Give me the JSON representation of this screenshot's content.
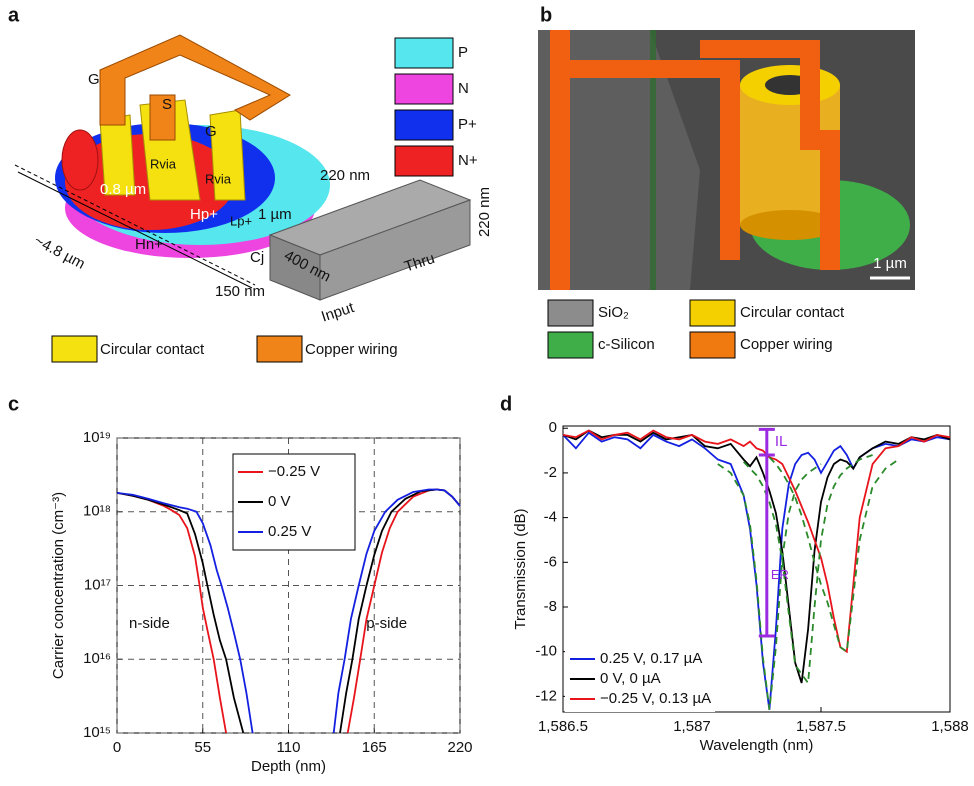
{
  "panels": {
    "a": {
      "label": "a",
      "legend": [
        {
          "name": "P",
          "color": "#55e6ee"
        },
        {
          "name": "N",
          "color": "#ee44e0"
        },
        {
          "name": "P+",
          "color": "#1030ee"
        },
        {
          "name": "N+",
          "color": "#ee2222"
        }
      ],
      "legend_bottom": [
        {
          "name": "Circular contact",
          "color": "#f5e010"
        },
        {
          "name": "Copper wiring",
          "color": "#f08418"
        }
      ],
      "texts": {
        "gate_left": "G",
        "source": "S",
        "gate_right": "G",
        "r_via_left": "Rvia",
        "r_via_right": "Rvia",
        "contact_height": "220 nm",
        "ring_width": "1 µm",
        "inner_width": "0.8 µm",
        "diameter": "~4.8 µm",
        "hp": "Hp+",
        "hn": "Hn+",
        "lp": "Lp+",
        "cj": "Cj",
        "wg_width": "400 nm",
        "gap": "150 nm",
        "wg_height": "220 nm",
        "input": "Input",
        "thru": "Thru"
      }
    },
    "b": {
      "label": "b",
      "scale_bar": "1 µm",
      "legend": [
        {
          "name": "SiO₂",
          "color": "#8c8c8c"
        },
        {
          "name": "c-Silicon",
          "color": "#3fae48"
        },
        {
          "name": "Circular contact",
          "color": "#f5d000"
        },
        {
          "name": "Copper wiring",
          "color": "#f07a10"
        }
      ]
    }
  },
  "chart_data": [
    {
      "type": "line",
      "panel_label": "c",
      "xlabel": "Depth (nm)",
      "ylabel": "Carrier concentration (cm⁻³)",
      "xlim": [
        0,
        220
      ],
      "xticks": [
        0,
        55,
        110,
        165,
        220
      ],
      "ylog": true,
      "ylim": [
        1000000000000000.0,
        1e+19
      ],
      "yticks": [
        {
          "value": 1000000000000000.0,
          "label": "10¹⁵"
        },
        {
          "value": 1e+16,
          "label": "10¹⁶"
        },
        {
          "value": 1e+17,
          "label": "10¹⁷"
        },
        {
          "value": 1e+18,
          "label": "10¹⁸"
        },
        {
          "value": 1e+19,
          "label": "10¹⁹"
        }
      ],
      "grid": true,
      "legend": "upper-center",
      "annotations": [
        "n-side",
        "p-side"
      ],
      "series": [
        {
          "name": "−0.25 V",
          "color": "#e8141c",
          "x": [
            0,
            10,
            20,
            30,
            35,
            40,
            45,
            50,
            53,
            55,
            58,
            62,
            66,
            70,
            null,
            148,
            152,
            156,
            160,
            165,
            170,
            175,
            180,
            190,
            200,
            205,
            210,
            215,
            220
          ],
          "values": [
            1.8e+18,
            1.65e+18,
            1.45e+18,
            1.2e+18,
            1.05e+18,
            9e+17,
            6e+17,
            2.5e+17,
            1e+17,
            5e+16,
            2.5e+16,
            1e+16,
            3000000000000000.0,
            1000000000000000.0,
            null,
            1000000000000000.0,
            3000000000000000.0,
            1e+16,
            3.5e+16,
            1e+17,
            2.8e+17,
            6e+17,
            1e+18,
            1.6e+18,
            1.95e+18,
            2e+18,
            1.95e+18,
            1.6e+18,
            1.2e+18
          ]
        },
        {
          "name": "0 V",
          "color": "#000000",
          "x": [
            0,
            10,
            20,
            30,
            35,
            40,
            45,
            50,
            55,
            58,
            62,
            66,
            70,
            75,
            81,
            null,
            143,
            147,
            151,
            155,
            160,
            165,
            170,
            176,
            185,
            195,
            205,
            210,
            215,
            220
          ],
          "values": [
            1.8e+18,
            1.65e+18,
            1.45e+18,
            1.25e+18,
            1.15e+18,
            1.05e+18,
            9.5e+17,
            5e+17,
            2e+17,
            1e+17,
            4e+16,
            1.8e+16,
            1e+16,
            3000000000000000.0,
            1000000000000000.0,
            null,
            1000000000000000.0,
            3500000000000000.0,
            1e+16,
            3.5e+16,
            1e+17,
            2.6e+17,
            5.5e+17,
            1e+18,
            1.5e+18,
            1.9e+18,
            2e+18,
            1.95e+18,
            1.6e+18,
            1.2e+18
          ]
        },
        {
          "name": "0.25 V",
          "color": "#1420e0",
          "x": [
            0,
            10,
            20,
            30,
            40,
            45,
            51,
            55,
            60,
            64,
            67,
            71,
            75,
            79,
            83,
            87,
            null,
            139,
            142,
            146,
            150,
            155,
            160,
            165,
            172,
            180,
            190,
            200,
            205,
            210,
            215,
            220
          ],
          "values": [
            1.8e+18,
            1.7e+18,
            1.5e+18,
            1.3e+18,
            1.15e+18,
            1.1e+18,
            1e+18,
            7e+17,
            3.5e+17,
            1.6e+17,
            1e+17,
            5e+16,
            2.3e+16,
            1e+16,
            3500000000000000.0,
            1000000000000000.0,
            null,
            1000000000000000.0,
            3500000000000000.0,
            1e+16,
            3.5e+16,
            1e+17,
            2.7e+17,
            5.5e+17,
            1e+18,
            1.45e+18,
            1.85e+18,
            2e+18,
            2e+18,
            1.95e+18,
            1.6e+18,
            1.2e+18
          ]
        }
      ]
    },
    {
      "type": "line",
      "panel_label": "d",
      "xlabel": "Wavelength (nm)",
      "ylabel": "Transmission (dB)",
      "xlim": [
        1586.5,
        1588
      ],
      "xticks": [
        {
          "value": 1586.5,
          "label": "1,586.5"
        },
        {
          "value": 1587,
          "label": "1,587"
        },
        {
          "value": 1587.5,
          "label": "1,587.5"
        },
        {
          "value": 1588,
          "label": "1,588"
        }
      ],
      "ylim": [
        -12.7,
        0.1
      ],
      "yticks": [
        0,
        -2,
        -4,
        -6,
        -8,
        -10,
        -12
      ],
      "grid": false,
      "legend": "lower-left",
      "marker": {
        "x": 1587.29,
        "top": -0.05,
        "il": -1.2,
        "bottom": -9.3,
        "il_label": "IL",
        "er_label": "ER",
        "color": "#9a2be0"
      },
      "x": [
        1586.5,
        1586.55,
        1586.6,
        1586.65,
        1586.7,
        1586.75,
        1586.8,
        1586.85,
        1586.9,
        1586.95,
        1587.0,
        1587.05,
        1587.1,
        1587.15,
        1587.2,
        1587.225,
        1587.25,
        1587.275,
        1587.3,
        1587.325,
        1587.35,
        1587.375,
        1587.4,
        1587.425,
        1587.45,
        1587.475,
        1587.5,
        1587.525,
        1587.55,
        1587.575,
        1587.6,
        1587.625,
        1587.65,
        1587.7,
        1587.75,
        1587.8,
        1587.85,
        1587.9,
        1587.95,
        1588.0
      ],
      "series": [
        {
          "name": "0.25 V, 0.17 µA",
          "color": "#1420e0",
          "values": [
            -0.3,
            -0.9,
            -0.2,
            -0.6,
            -0.4,
            -0.5,
            -0.9,
            -0.3,
            -0.6,
            -0.8,
            -0.5,
            -0.9,
            -1.4,
            -1.6,
            -3.0,
            -4.5,
            -7.0,
            -10.5,
            -12.6,
            -9.0,
            -4.5,
            -2.5,
            -1.6,
            -1.2,
            -1.1,
            -1.4,
            -2.0,
            -1.5,
            -1.0,
            -0.8,
            -1.2,
            -1.8,
            -1.3,
            -0.9,
            -0.7,
            -0.8,
            -0.5,
            -0.6,
            -0.4,
            -0.5
          ]
        },
        {
          "name": "0 V, 0 µA",
          "color": "#000000",
          "values": [
            -0.3,
            -0.5,
            -0.1,
            -0.4,
            -0.3,
            -0.3,
            -0.6,
            -0.2,
            -0.5,
            -0.4,
            -0.3,
            -0.8,
            -0.9,
            -0.7,
            -1.4,
            -1.7,
            -1.3,
            -2.0,
            -2.8,
            -3.8,
            -5.5,
            -8.0,
            -10.5,
            -11.4,
            -9.0,
            -5.5,
            -3.3,
            -2.2,
            -1.6,
            -1.4,
            -1.5,
            -1.8,
            -1.3,
            -0.9,
            -0.6,
            -0.7,
            -0.4,
            -0.5,
            -0.3,
            -0.5
          ]
        },
        {
          "name": "−0.25 V, 0.13 µA",
          "color": "#e8141c",
          "values": [
            -0.3,
            -0.4,
            -0.1,
            -0.5,
            -0.3,
            -0.2,
            -0.5,
            -0.1,
            -0.4,
            -0.5,
            -0.3,
            -0.6,
            -0.7,
            -0.5,
            -0.8,
            -0.6,
            -0.9,
            -1.0,
            -1.3,
            -1.4,
            -1.6,
            -2.2,
            -2.8,
            -3.5,
            -4.2,
            -5.0,
            -5.8,
            -7.0,
            -8.5,
            -9.8,
            -10.0,
            -7.0,
            -4.0,
            -1.6,
            -0.9,
            -0.8,
            -0.4,
            -0.6,
            -0.3,
            -0.4
          ]
        },
        {
          "color": "#2a8a2a",
          "dashed": true,
          "values": [
            null,
            null,
            null,
            null,
            null,
            null,
            null,
            null,
            null,
            null,
            null,
            null,
            -1.6,
            -2.0,
            -3.0,
            -4.3,
            -6.8,
            -10.3,
            -12.6,
            -9.8,
            -5.8,
            -3.8,
            -2.8,
            -2.3,
            -2.0,
            -1.8,
            -1.6,
            null,
            null,
            null,
            null,
            null,
            null,
            null,
            null,
            null,
            null,
            null,
            null,
            null
          ]
        },
        {
          "color": "#2a8a2a",
          "dashed": true,
          "values": [
            null,
            null,
            null,
            null,
            null,
            null,
            null,
            null,
            null,
            null,
            null,
            null,
            null,
            null,
            -1.5,
            -1.8,
            -2.1,
            -2.6,
            -3.3,
            -4.3,
            -5.9,
            -8.3,
            -10.6,
            -11.0,
            -11.4,
            -8.0,
            -5.0,
            -3.4,
            -2.6,
            -2.1,
            -1.8,
            -1.6,
            -1.4,
            -1.2,
            null,
            null,
            null,
            null,
            null,
            null
          ]
        },
        {
          "color": "#2a8a2a",
          "dashed": true,
          "values": [
            null,
            null,
            null,
            null,
            null,
            null,
            null,
            null,
            null,
            null,
            null,
            null,
            null,
            null,
            null,
            null,
            null,
            null,
            -1.3,
            -1.6,
            -2.0,
            -2.5,
            -3.1,
            -3.9,
            -4.9,
            -6.0,
            -7.0,
            -7.8,
            -8.8,
            -9.8,
            -10.0,
            -7.5,
            -5.0,
            -2.6,
            -1.8,
            -1.4,
            null,
            null,
            null,
            null
          ]
        }
      ]
    }
  ]
}
